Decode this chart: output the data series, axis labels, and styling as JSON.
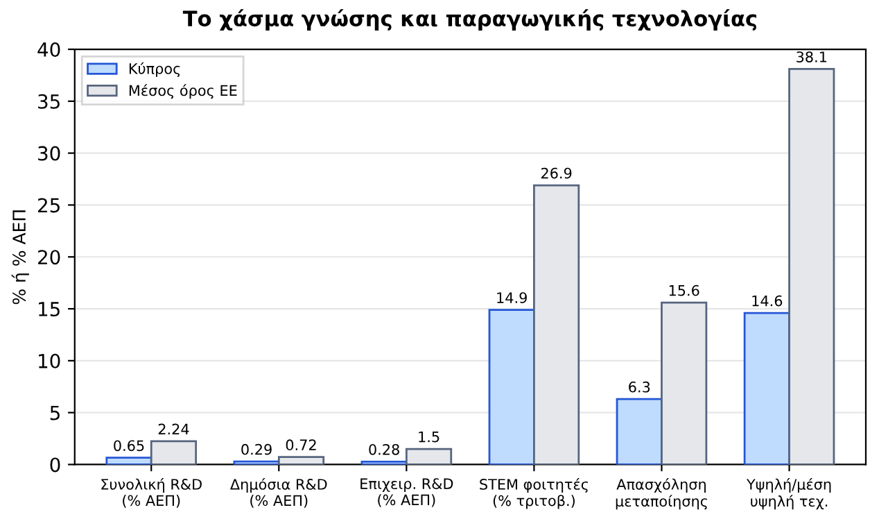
{
  "chart_data": {
    "type": "bar",
    "title": "Το χάσμα γνώσης και παραγωγικής τεχνολογίας",
    "ylabel": "% ή % ΑΕΠ",
    "categories": [
      "Συνολική R&D\n(% ΑΕΠ)",
      "Δημόσια R&D\n(% ΑΕΠ)",
      "Επιχειρ. R&D\n(% ΑΕΠ)",
      "STEM φοιτητές\n(% τριτοβ.)",
      "Απασχόληση\nμεταποίησης",
      "Υψηλή/μέση\nυψηλή τεχ."
    ],
    "series": [
      {
        "name": "Κύπρος",
        "color": "#bfdbfe",
        "values": [
          0.65,
          0.29,
          0.28,
          14.9,
          6.3,
          14.6
        ]
      },
      {
        "name": "Μέσος όρος ΕΕ",
        "color": "#e5e7eb",
        "values": [
          2.24,
          0.72,
          1.5,
          26.9,
          15.6,
          38.1
        ]
      }
    ],
    "ylim": [
      0,
      40
    ],
    "yticks": [
      0,
      5,
      10,
      15,
      20,
      25,
      30,
      35,
      40
    ],
    "grid": "y",
    "legend": "top left",
    "data_labels": true
  }
}
